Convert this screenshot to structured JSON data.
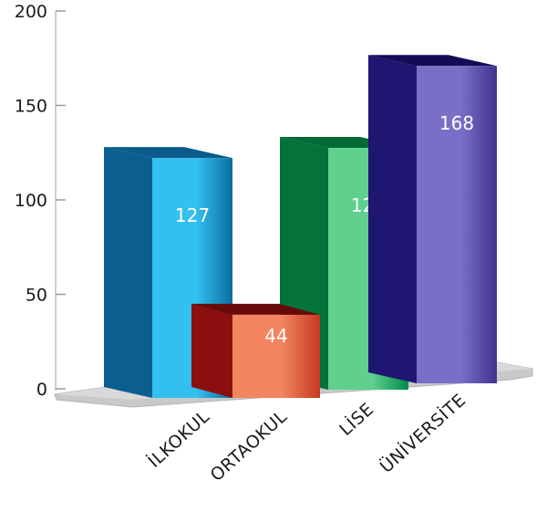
{
  "chart_data": {
    "type": "bar",
    "title": "",
    "xlabel": "",
    "ylabel": "",
    "categories": [
      "İLKOKUL",
      "ORTAOKUL",
      "LİSE",
      "ÜNİVERSİTE"
    ],
    "values": [
      127,
      44,
      128,
      168
    ],
    "ylim": [
      0,
      200
    ],
    "yticks": [
      0,
      50,
      100,
      150,
      200
    ],
    "grid": false,
    "legend": "none",
    "style": "3d-columns",
    "colors": {
      "İLKOKUL": {
        "front_dark": "#0a6ea0",
        "front_light": "#33bff0",
        "side": "#0a5f8e",
        "top": "#0b5c8c"
      },
      "ORTAOKUL": {
        "front_dark": "#c63a22",
        "front_light": "#f3865f",
        "side": "#8c0f0f",
        "top": "#6a0909"
      },
      "LİSE": {
        "front_dark": "#008a4a",
        "front_light": "#5fd08e",
        "side": "#04723a",
        "top": "#026a35"
      },
      "ÜNİVERSİTE": {
        "front_dark": "#3f338f",
        "front_light": "#7a6fc8",
        "side": "#1e1670",
        "top": "#120c55"
      }
    },
    "floor_color": "#c9c9c9"
  }
}
